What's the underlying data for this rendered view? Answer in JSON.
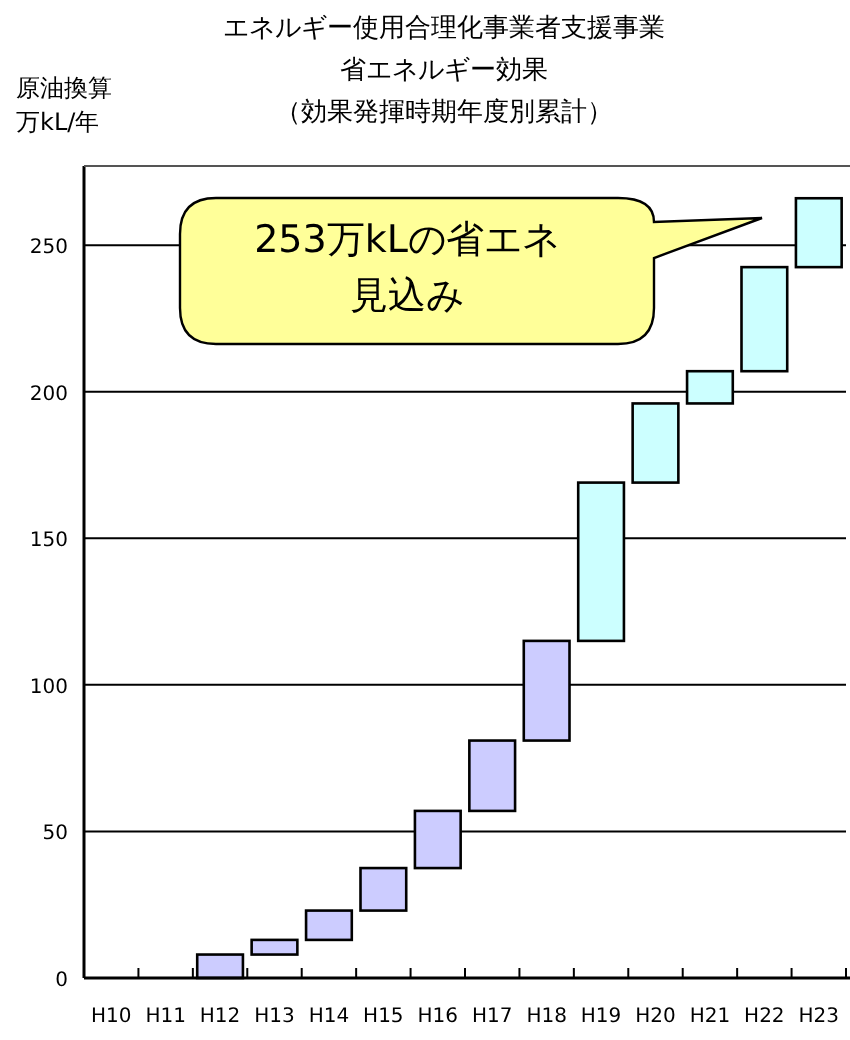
{
  "chart_data": {
    "type": "bar",
    "title": "エネルギー使用合理化事業者支援事業",
    "subtitle": "省エネルギー効果",
    "ylabel": "原油換算万kL/年",
    "categories": [
      "H10",
      "H11",
      "H12",
      "H13",
      "H14",
      "H15",
      "H16",
      "H17",
      "H18",
      "H19",
      "H20",
      "H21",
      "H22",
      "H23"
    ],
    "base": [
      null,
      null,
      0,
      8,
      13,
      23,
      37.5,
      57,
      81,
      115,
      169,
      196,
      207,
      242.5
    ],
    "values": [
      null,
      null,
      8,
      5,
      10,
      14.5,
      19.5,
      24,
      34,
      54,
      27,
      11,
      35.5,
      23.5
    ],
    "colors": [
      null,
      null,
      "#ccccff",
      "#ccccff",
      "#ccccff",
      "#ccccff",
      "#ccccff",
      "#ccccff",
      "#ccccff",
      "#ccffff",
      "#ccffff",
      "#ccffff",
      "#ccffff",
      "#ccffff"
    ],
    "ylim": [
      0,
      277
    ],
    "yticks": [
      0,
      50,
      100,
      150,
      200,
      250
    ],
    "grid": "y",
    "annotations": [
      "（効果発揮時期年度別累計）",
      "253万kLの省エネ見込み"
    ]
  }
}
